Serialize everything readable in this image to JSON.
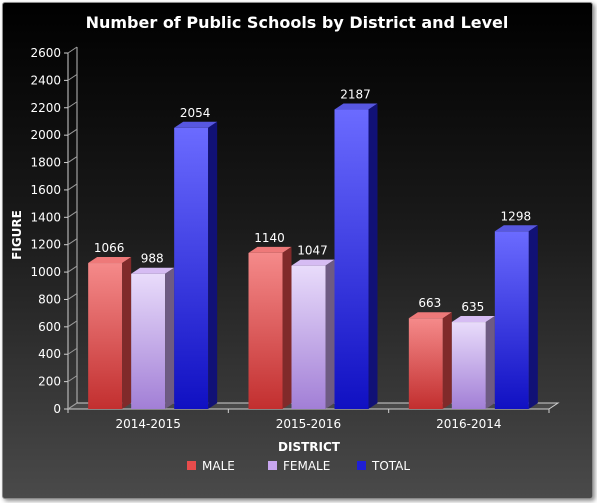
{
  "chart_data": {
    "type": "bar",
    "title": "Number of Public Schools by District and Level",
    "xlabel": "DISTRICT",
    "ylabel": "FIGURE",
    "categories": [
      "2014-2015",
      "2015-2016",
      "2016-2014"
    ],
    "series": [
      {
        "name": "MALE",
        "values": [
          1066,
          1140,
          663
        ],
        "color": "#e84c4c"
      },
      {
        "name": "FEMALE",
        "values": [
          988,
          1047,
          635
        ],
        "color": "#c8a6ef"
      },
      {
        "name": "TOTAL",
        "values": [
          2054,
          2187,
          1298
        ],
        "color": "#1f1fd6"
      }
    ],
    "ylim": [
      0,
      2600
    ],
    "yticks": [
      0,
      200,
      400,
      600,
      800,
      1000,
      1200,
      1400,
      1600,
      1800,
      2000,
      2200,
      2400,
      2600
    ],
    "grid": false,
    "legend_position": "bottom"
  }
}
